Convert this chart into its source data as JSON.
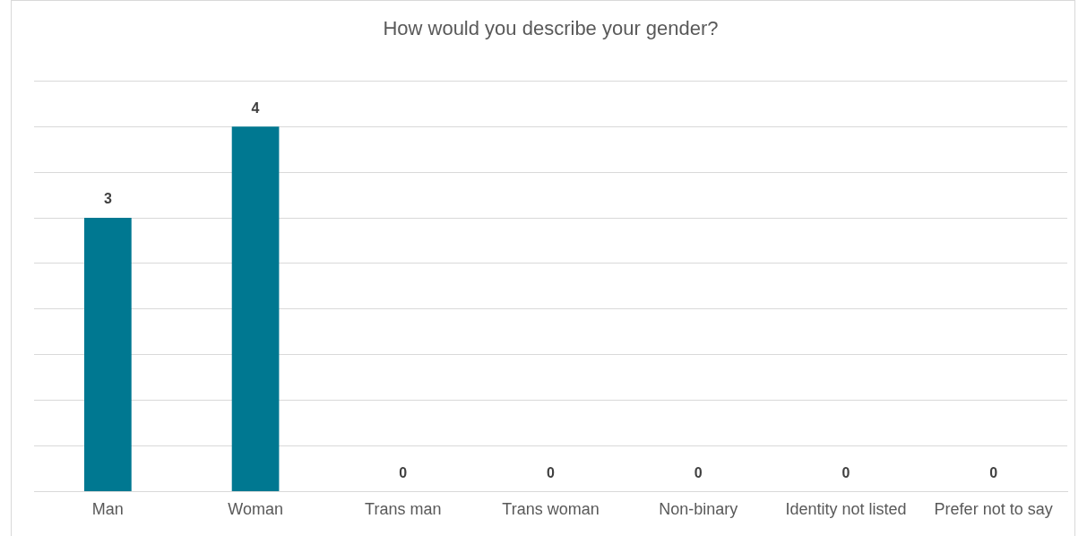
{
  "chart_data": {
    "type": "bar",
    "title": "How would you describe your gender?",
    "categories": [
      "Man",
      "Woman",
      "Trans man",
      "Trans woman",
      "Non-binary",
      "Identity not listed",
      "Prefer not to say"
    ],
    "values": [
      3,
      4,
      0,
      0,
      0,
      0,
      0
    ],
    "color": "#007891",
    "ylim": [
      0,
      4.5
    ],
    "yticks": [
      {
        "value": 0,
        "label": null
      },
      {
        "value": 0.5,
        "label": null
      },
      {
        "value": 1,
        "label": null
      },
      {
        "value": 1.5,
        "label": null
      },
      {
        "value": 2,
        "label": null
      },
      {
        "value": 2.5,
        "label": null
      },
      {
        "value": 3,
        "label": null
      },
      {
        "value": 3.5,
        "label": null
      },
      {
        "value": 4,
        "label": null
      },
      {
        "value": 4.5,
        "label": null
      }
    ],
    "grid": "y",
    "tick_labels": "x",
    "data_labels": true,
    "legend": false
  }
}
